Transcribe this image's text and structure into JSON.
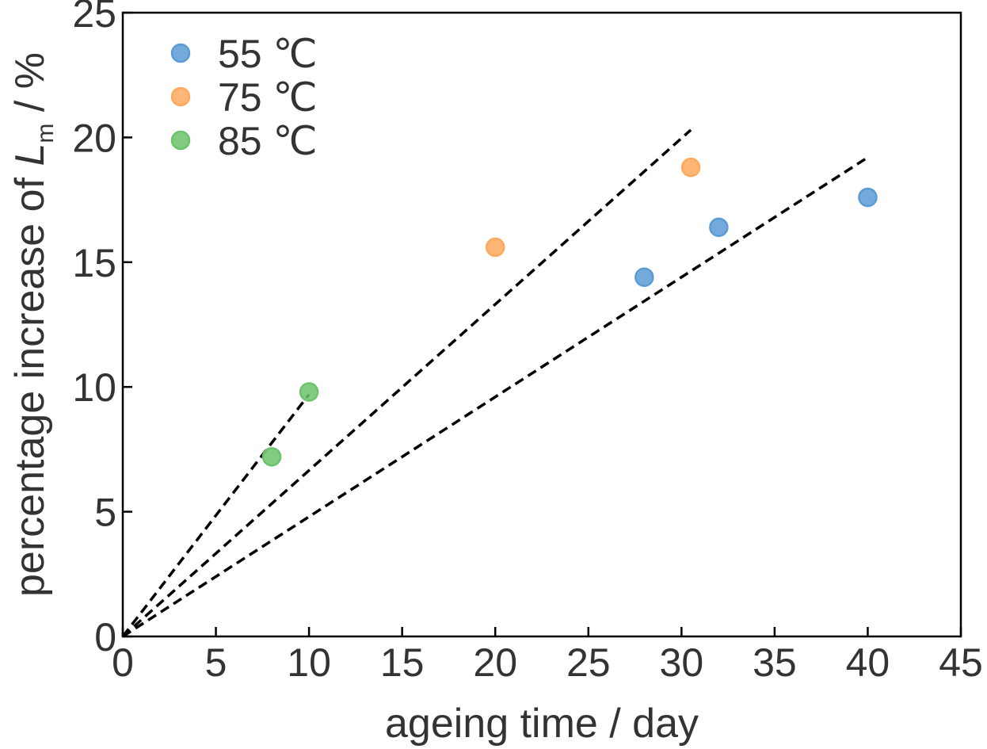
{
  "chart_data": {
    "type": "scatter",
    "title": "",
    "xlabel": "ageing time / day",
    "ylabel": {
      "prefix": "percentage increase of ",
      "symbol": "L",
      "subscript": "m",
      "suffix": " / %"
    },
    "xlim": [
      0,
      45
    ],
    "ylim": [
      0,
      25
    ],
    "xticks": [
      "0",
      "5",
      "10",
      "15",
      "20",
      "25",
      "30",
      "35",
      "40",
      "45"
    ],
    "yticks": [
      "0",
      "5",
      "10",
      "15",
      "20",
      "25"
    ],
    "grid": false,
    "legend_position": "top-left",
    "series": [
      {
        "name": "55 ℃",
        "color": "#5b9bd5",
        "points": [
          [
            28,
            14.4
          ],
          [
            32,
            16.4
          ],
          [
            40,
            17.6
          ]
        ],
        "fit": [
          [
            0,
            0
          ],
          [
            40,
            19.2
          ]
        ]
      },
      {
        "name": "75 ℃",
        "color": "#ffa95e",
        "points": [
          [
            20,
            15.6
          ],
          [
            30.5,
            18.8
          ]
        ],
        "fit": [
          [
            0,
            0
          ],
          [
            30.5,
            20.3
          ]
        ]
      },
      {
        "name": "85 ℃",
        "color": "#6cc36c",
        "points": [
          [
            8,
            7.2
          ],
          [
            10,
            9.8
          ]
        ],
        "fit": [
          [
            0,
            0
          ],
          [
            10,
            9.7
          ]
        ]
      }
    ]
  }
}
